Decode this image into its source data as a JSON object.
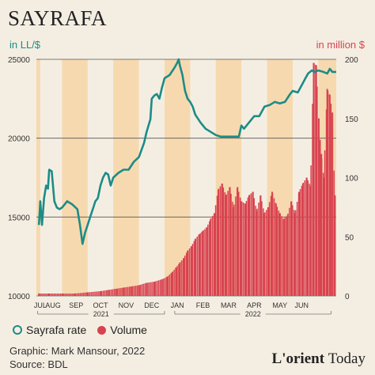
{
  "title": "SAYRAFA",
  "left_unit": "in LL/$",
  "right_unit": "in million $",
  "legend": {
    "rate": "Sayrafa rate",
    "volume": "Volume"
  },
  "credit": {
    "graphic": "Graphic: Mark Mansour, 2022",
    "source": "Source: BDL"
  },
  "logo": {
    "bold": "L'orient",
    "light": "Today"
  },
  "colors": {
    "rate": "#1c8c86",
    "volume": "#d8434f",
    "band": "#f7d9b0",
    "background": "#f4eee2"
  },
  "chart_data": {
    "type": "line",
    "x_unit": "month index (0 = start of July 2021)",
    "y_left": {
      "label": "in LL/$",
      "ylim": [
        10000,
        25000
      ],
      "ticks": [
        "10000",
        "15000",
        "20000",
        "25000"
      ]
    },
    "y_right": {
      "label": "in million $",
      "ylim": [
        0,
        200
      ],
      "ticks": [
        "0",
        "50",
        "100",
        "150",
        "200"
      ]
    },
    "months": [
      "JUL",
      "AUG",
      "SEP",
      "OCT",
      "NOV",
      "DEC",
      "JAN",
      "FEB",
      "MAR",
      "APR",
      "MAY",
      "JUN"
    ],
    "month_positions": [
      0.15,
      0.65,
      1.55,
      2.5,
      3.5,
      4.5,
      5.5,
      6.5,
      7.5,
      8.5,
      9.5,
      10.35
    ],
    "years": [
      "2021",
      "2022"
    ],
    "bands": [
      [
        0,
        0.15
      ],
      [
        1.0,
        2.0
      ],
      [
        3.0,
        4.0
      ],
      [
        5.0,
        6.0
      ],
      [
        7.0,
        8.0
      ],
      [
        9.0,
        10.0
      ],
      [
        11.0,
        11.7
      ]
    ],
    "grid": true,
    "series": [
      {
        "name": "Sayrafa rate",
        "axis": "left",
        "points": [
          [
            0.1,
            14500
          ],
          [
            0.15,
            16000
          ],
          [
            0.22,
            14500
          ],
          [
            0.3,
            16200
          ],
          [
            0.38,
            17000
          ],
          [
            0.45,
            16800
          ],
          [
            0.5,
            18000
          ],
          [
            0.6,
            17900
          ],
          [
            0.7,
            16000
          ],
          [
            0.8,
            15600
          ],
          [
            0.9,
            15500
          ],
          [
            1.0,
            15600
          ],
          [
            1.2,
            16000
          ],
          [
            1.4,
            15800
          ],
          [
            1.6,
            15500
          ],
          [
            1.7,
            14500
          ],
          [
            1.8,
            13300
          ],
          [
            1.9,
            14000
          ],
          [
            2.0,
            14500
          ],
          [
            2.1,
            15000
          ],
          [
            2.2,
            15500
          ],
          [
            2.3,
            16000
          ],
          [
            2.4,
            16200
          ],
          [
            2.5,
            17000
          ],
          [
            2.6,
            17500
          ],
          [
            2.7,
            17800
          ],
          [
            2.8,
            17700
          ],
          [
            2.9,
            17000
          ],
          [
            3.0,
            17500
          ],
          [
            3.2,
            17800
          ],
          [
            3.4,
            18000
          ],
          [
            3.6,
            18000
          ],
          [
            3.8,
            18500
          ],
          [
            4.0,
            18800
          ],
          [
            4.2,
            19700
          ],
          [
            4.3,
            20400
          ],
          [
            4.45,
            21200
          ],
          [
            4.5,
            22500
          ],
          [
            4.6,
            22700
          ],
          [
            4.7,
            22800
          ],
          [
            4.8,
            22500
          ],
          [
            4.9,
            23200
          ],
          [
            5.0,
            23800
          ],
          [
            5.2,
            24000
          ],
          [
            5.4,
            24500
          ],
          [
            5.5,
            24800
          ],
          [
            5.55,
            25000
          ],
          [
            5.6,
            24600
          ],
          [
            5.7,
            24000
          ],
          [
            5.8,
            23000
          ],
          [
            5.9,
            22500
          ],
          [
            6.0,
            22300
          ],
          [
            6.1,
            22000
          ],
          [
            6.2,
            21500
          ],
          [
            6.4,
            21000
          ],
          [
            6.6,
            20600
          ],
          [
            6.8,
            20400
          ],
          [
            7.0,
            20200
          ],
          [
            7.2,
            20100
          ],
          [
            7.5,
            20100
          ],
          [
            7.9,
            20100
          ],
          [
            8.0,
            20800
          ],
          [
            8.1,
            20600
          ],
          [
            8.3,
            21000
          ],
          [
            8.5,
            21400
          ],
          [
            8.7,
            21400
          ],
          [
            8.9,
            22000
          ],
          [
            9.1,
            22100
          ],
          [
            9.3,
            22300
          ],
          [
            9.5,
            22200
          ],
          [
            9.7,
            22300
          ],
          [
            9.9,
            22800
          ],
          [
            10.0,
            23000
          ],
          [
            10.2,
            22900
          ],
          [
            10.4,
            23500
          ],
          [
            10.5,
            23800
          ],
          [
            10.6,
            24100
          ],
          [
            10.75,
            24300
          ],
          [
            10.85,
            24200
          ],
          [
            11.0,
            24300
          ],
          [
            11.2,
            24200
          ],
          [
            11.35,
            24100
          ],
          [
            11.45,
            24400
          ],
          [
            11.55,
            24200
          ],
          [
            11.7,
            24200
          ]
        ]
      },
      {
        "name": "Volume",
        "axis": "right",
        "bars": [
          [
            0.1,
            2
          ],
          [
            0.5,
            2
          ],
          [
            1.0,
            2
          ],
          [
            1.5,
            2
          ],
          [
            2.0,
            3
          ],
          [
            2.5,
            4
          ],
          [
            2.8,
            5
          ],
          [
            3.1,
            6
          ],
          [
            3.4,
            7
          ],
          [
            3.7,
            8
          ],
          [
            4.0,
            9
          ],
          [
            4.3,
            11
          ],
          [
            4.6,
            12
          ],
          [
            4.9,
            14
          ],
          [
            5.1,
            16
          ],
          [
            5.3,
            20
          ],
          [
            5.45,
            24
          ],
          [
            5.6,
            28
          ],
          [
            5.75,
            32
          ],
          [
            5.9,
            38
          ],
          [
            6.05,
            42
          ],
          [
            6.2,
            48
          ],
          [
            6.35,
            52
          ],
          [
            6.5,
            55
          ],
          [
            6.65,
            58
          ],
          [
            6.8,
            65
          ],
          [
            6.95,
            70
          ],
          [
            7.1,
            90
          ],
          [
            7.25,
            95
          ],
          [
            7.4,
            85
          ],
          [
            7.55,
            92
          ],
          [
            7.7,
            75
          ],
          [
            7.85,
            92
          ],
          [
            8.0,
            80
          ],
          [
            8.15,
            78
          ],
          [
            8.3,
            85
          ],
          [
            8.45,
            88
          ],
          [
            8.6,
            72
          ],
          [
            8.75,
            85
          ],
          [
            8.9,
            70
          ],
          [
            9.05,
            75
          ],
          [
            9.2,
            88
          ],
          [
            9.35,
            78
          ],
          [
            9.5,
            70
          ],
          [
            9.65,
            65
          ],
          [
            9.8,
            68
          ],
          [
            9.95,
            80
          ],
          [
            10.1,
            70
          ],
          [
            10.25,
            88
          ],
          [
            10.4,
            95
          ],
          [
            10.55,
            100
          ],
          [
            10.7,
            93
          ],
          [
            10.82,
            197
          ],
          [
            10.92,
            195
          ],
          [
            11.02,
            150
          ],
          [
            11.12,
            120
          ],
          [
            11.22,
            100
          ],
          [
            11.35,
            175
          ],
          [
            11.45,
            170
          ],
          [
            11.55,
            155
          ],
          [
            11.65,
            85
          ]
        ]
      }
    ]
  }
}
